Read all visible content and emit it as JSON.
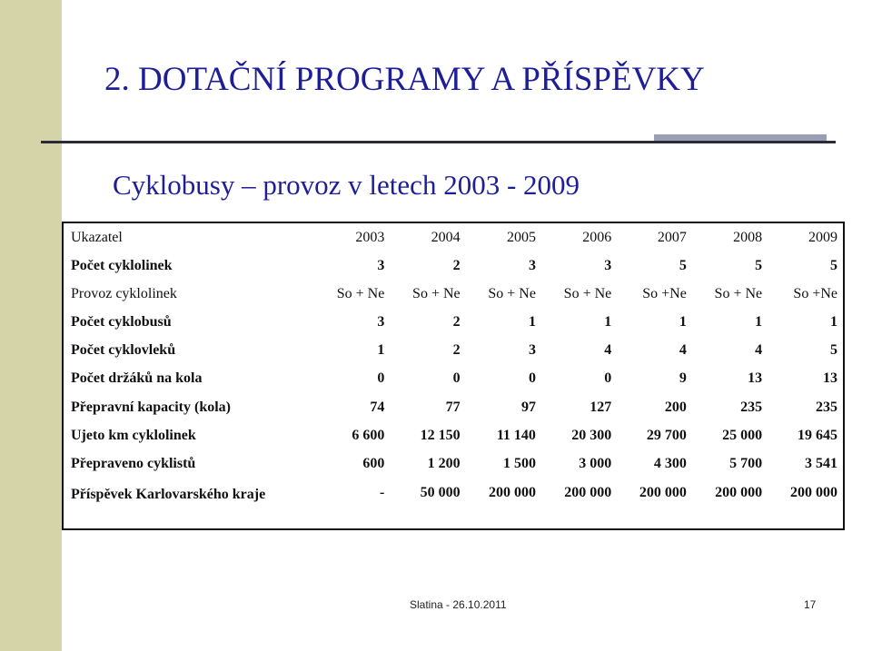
{
  "slide": {
    "title": "2. DOTAČNÍ PROGRAMY A PŘÍSPĚVKY",
    "subtitle": "Cyklobusy – provoz v letech 2003 - 2009",
    "colors": {
      "title": "#1e1e96",
      "band": "#d4d4a8",
      "accent_bar": "#9aa0b4"
    }
  },
  "table": {
    "header": [
      "Ukazatel",
      "2003",
      "2004",
      "2005",
      "2006",
      "2007",
      "2008",
      "2009"
    ],
    "rows": [
      {
        "label": "Počet cyklolinek",
        "values": [
          "3",
          "2",
          "3",
          "3",
          "5",
          "5",
          "5"
        ]
      },
      {
        "label": "Provoz cyklolinek",
        "values": [
          "So + Ne",
          "So + Ne",
          "So + Ne",
          "So + Ne",
          "So +Ne",
          "So + Ne",
          "So +Ne"
        ]
      },
      {
        "label": "Počet cyklobusů",
        "values": [
          "3",
          "2",
          "1",
          "1",
          "1",
          "1",
          "1"
        ]
      },
      {
        "label": "Počet cyklovleků",
        "values": [
          "1",
          "2",
          "3",
          "4",
          "4",
          "4",
          "5"
        ]
      },
      {
        "label": "Počet držáků na kola",
        "values": [
          "0",
          "0",
          "0",
          "0",
          "9",
          "13",
          "13"
        ]
      },
      {
        "label": "Přepravní kapacity (kola)",
        "values": [
          "74",
          "77",
          "97",
          "127",
          "200",
          "235",
          "235"
        ]
      },
      {
        "label": "Ujeto km cyklolinek",
        "values": [
          "6 600",
          "12 150",
          "11 140",
          "20 300",
          "29 700",
          "25 000",
          "19 645"
        ]
      },
      {
        "label": "Přepraveno cyklistů",
        "values": [
          "600",
          "1 200",
          "1 500",
          "3 000",
          "4 300",
          "5 700",
          "3 541"
        ]
      },
      {
        "label": "Příspěvek Karlovarského kraje",
        "values": [
          "-",
          "50 000",
          "200 000",
          "200 000",
          "200 000",
          "200 000",
          "200 000"
        ]
      }
    ]
  },
  "footer": {
    "text": "Slatina - 26.10.2011",
    "page": "17"
  }
}
